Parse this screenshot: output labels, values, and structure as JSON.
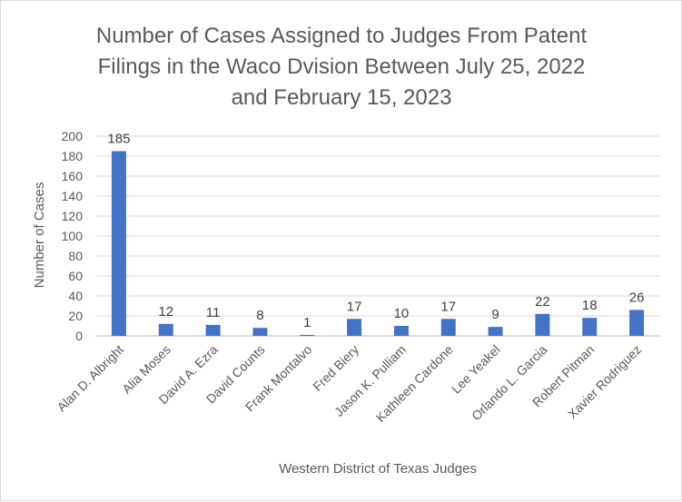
{
  "chart_data": {
    "type": "bar",
    "title_lines": [
      "Number of Cases Assigned to Judges From Patent",
      "Filings in the Waco Dvision Between July 25, 2022",
      "and February 15, 2023"
    ],
    "xlabel": "Western District of Texas Judges",
    "ylabel": "Number of Cases",
    "ylim": [
      0,
      200
    ],
    "yticks": [
      0,
      20,
      40,
      60,
      80,
      100,
      120,
      140,
      160,
      180,
      200
    ],
    "grid": true,
    "legend": "none",
    "bar_color": "#4472c4",
    "categories": [
      "Alan D. Albright",
      "Alia Moses",
      "David A. Ezra",
      "David Counts",
      "Frank Montalvo",
      "Fred Biery",
      "Jason K. Pulliam",
      "Kathleen Cardone",
      "Lee Yeakel",
      "Orlando L. Garcia",
      "Robert Pitman",
      "Xavier Rodriguez"
    ],
    "values": [
      185,
      12,
      11,
      8,
      1,
      17,
      10,
      17,
      9,
      22,
      18,
      26
    ]
  }
}
